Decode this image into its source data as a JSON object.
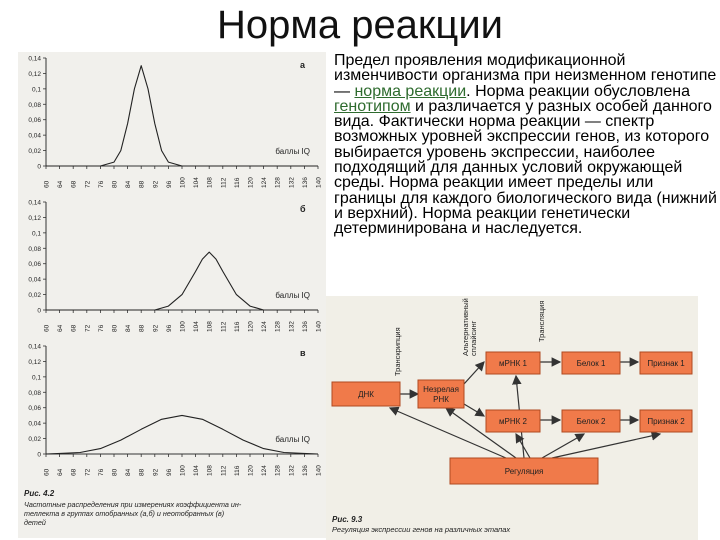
{
  "slide": {
    "title": "Норма реакции",
    "body_parts": [
      "Предел проявления модификационной изменчивости организма при неизменном генотипе — ",
      "норма реакции",
      ". Норма реакции обусловлена ",
      "генотипом",
      " и различается у разных особей данного вида. Фактически норма реакции — спектр возможных уровней экспрессии генов, из которого выбирается уровень экспрессии, наиболее подходящий для данных условий окружающей среды. Норма реакции имеет пределы или границы для каждого биологического вида (нижний и верхний). Норма реакции генетически детерминирована и наследуется."
    ],
    "link_color": "#2e6b2e"
  },
  "left_figure": {
    "caption_title": "Рис. 4.2",
    "caption_lines": [
      "Частотные распределения при измерениях коэффициента ин-",
      "теллекта в группах отобранных (а,б) и неотобранных (в)",
      "детей"
    ],
    "x_label": "баллы IQ",
    "x_ticks": [
      "60",
      "64",
      "68",
      "72",
      "76",
      "80",
      "84",
      "88",
      "92",
      "96",
      "100",
      "104",
      "108",
      "112",
      "116",
      "120",
      "124",
      "128",
      "132",
      "136",
      "140"
    ],
    "panels": [
      {
        "letter": "а",
        "y_ticks": [
          "0,14",
          "0,12",
          "0,1",
          "0,08",
          "0,06",
          "0,04",
          "0,02",
          "0"
        ]
      },
      {
        "letter": "б",
        "y_ticks": [
          "0,14",
          "0,12",
          "0,1",
          "0,08",
          "0,06",
          "0,04",
          "0,02",
          "0"
        ]
      },
      {
        "letter": "в",
        "y_ticks": [
          "0,14",
          "0,12",
          "0,1",
          "0,08",
          "0,06",
          "0,04",
          "0,02",
          "0"
        ]
      }
    ]
  },
  "chart_data": [
    {
      "type": "line",
      "panel": "а",
      "xlabel": "баллы IQ",
      "ylabel": "",
      "xlim": [
        60,
        140
      ],
      "ylim": [
        0,
        0.14
      ],
      "x": [
        60,
        76,
        80,
        82,
        84,
        86,
        88,
        90,
        92,
        94,
        96,
        100,
        140
      ],
      "values": [
        0,
        0,
        0.005,
        0.02,
        0.055,
        0.1,
        0.13,
        0.1,
        0.055,
        0.02,
        0.005,
        0,
        0
      ]
    },
    {
      "type": "line",
      "panel": "б",
      "xlabel": "баллы IQ",
      "ylabel": "",
      "xlim": [
        60,
        140
      ],
      "ylim": [
        0,
        0.14
      ],
      "x": [
        60,
        92,
        96,
        100,
        104,
        106,
        108,
        110,
        112,
        116,
        120,
        124,
        140
      ],
      "values": [
        0,
        0,
        0.005,
        0.02,
        0.05,
        0.066,
        0.075,
        0.066,
        0.05,
        0.02,
        0.005,
        0,
        0
      ]
    },
    {
      "type": "line",
      "panel": "в",
      "xlabel": "баллы IQ",
      "ylabel": "",
      "xlim": [
        60,
        140
      ],
      "ylim": [
        0,
        0.14
      ],
      "x": [
        60,
        70,
        76,
        82,
        88,
        94,
        100,
        106,
        112,
        118,
        124,
        130,
        140
      ],
      "values": [
        0,
        0.002,
        0.007,
        0.018,
        0.032,
        0.045,
        0.05,
        0.045,
        0.032,
        0.018,
        0.007,
        0.002,
        0
      ]
    }
  ],
  "right_figure": {
    "caption_title": "Рис. 9.3",
    "caption_line": "Регуляция экспрессии генов на различных этапах",
    "box_color": "#f07a4a",
    "box_stroke": "#b04a20",
    "boxes": {
      "dna": "ДНК",
      "immature_rna_1": "Незрелая",
      "immature_rna_2": "РНК",
      "mrna1": "мРНК 1",
      "mrna2": "мРНК 2",
      "protein1": "Белок 1",
      "protein2": "Белок 2",
      "trait1": "Признак 1",
      "trait2": "Признак 2",
      "regulation": "Регуляция"
    },
    "rotated_labels": {
      "transcription": "Транскрипция",
      "alt_splicing_1": "Альтернативный",
      "alt_splicing_2": "сплайсинг",
      "translation": "Трансляция"
    }
  }
}
